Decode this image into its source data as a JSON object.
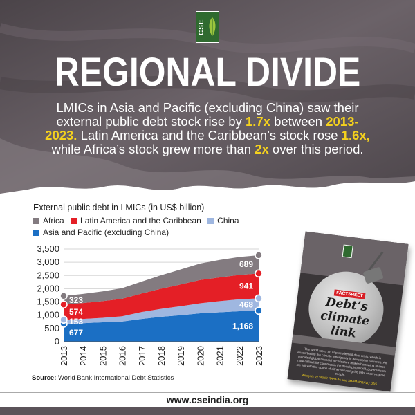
{
  "logo": {
    "text": "CSE"
  },
  "headline": {
    "title": "REGIONAL DIVIDE",
    "subtitle_parts": [
      {
        "text": "LMICs in Asia and Pacific (excluding China) saw their external public debt stock rise by ",
        "hl": false
      },
      {
        "text": "1.7x",
        "hl": true
      },
      {
        "text": " between ",
        "hl": false
      },
      {
        "text": "2013-2023.",
        "hl": true
      },
      {
        "text": " Latin America and the Caribbean’s stock rose ",
        "hl": false
      },
      {
        "text": "1.6x,",
        "hl": true
      },
      {
        "text": " while Africa’s stock grew more than ",
        "hl": false
      },
      {
        "text": "2x",
        "hl": true
      },
      {
        "text": " over this period.",
        "hl": false
      }
    ]
  },
  "colors": {
    "africa": "#837b80",
    "latin_america": "#e41f26",
    "china": "#9fb7e0",
    "asia_pacific": "#1b6fc4",
    "highlight": "#f4d11e",
    "header_bg": "#5b5359"
  },
  "chart_data": {
    "type": "area",
    "title": "External public debt in LMICs (in US$ billion)",
    "x": [
      "2013",
      "2014",
      "2015",
      "2016",
      "2017",
      "2018",
      "2019",
      "2020",
      "2021",
      "2022",
      "2023"
    ],
    "stacked": true,
    "ylim": [
      0,
      3500
    ],
    "yticks": [
      "0",
      "500",
      "1,000",
      "1,500",
      "2,000",
      "2,500",
      "3,000",
      "3,500"
    ],
    "grid": true,
    "legend_placement": "top-left",
    "series": [
      {
        "name": "Asia and Pacific (excluding China)",
        "color_key": "asia_pacific",
        "values": [
          677,
          700,
          730,
          760,
          860,
          940,
          1000,
          1070,
          1110,
          1150,
          1168
        ]
      },
      {
        "name": "China",
        "color_key": "china",
        "values": [
          153,
          160,
          170,
          200,
          260,
          300,
          340,
          380,
          420,
          450,
          468
        ]
      },
      {
        "name": "Latin America and the Caribbean",
        "color_key": "latin_america",
        "values": [
          574,
          600,
          630,
          660,
          700,
          760,
          820,
          880,
          900,
          920,
          941
        ]
      },
      {
        "name": "Africa",
        "color_key": "africa",
        "values": [
          323,
          345,
          370,
          400,
          450,
          510,
          570,
          620,
          660,
          680,
          689
        ]
      }
    ],
    "data_labels": {
      "start": [
        "677",
        "153",
        "574",
        "323"
      ],
      "end": [
        "1,168",
        "468",
        "941",
        "689"
      ]
    },
    "source_label": "Source:",
    "source_text": "World Bank International Debt Statistics"
  },
  "booklet": {
    "tag": "FACTSHEET",
    "title_line1": "Debt’s",
    "title_line2": "climate",
    "title_line3": "link",
    "blurb": "The world faces an unprecedented debt crisis, which is exacerbating the climate emergency in developing countries. An outdated global financial architecture makes borrowing finance more difficult for countries in the developing world, governments are left with the option of either servicing the debt or serving the people.",
    "authors": "Analysis by SEHR RAHEJA and SHAMAPRAVU DAS"
  },
  "footer": {
    "url": "www.cseindia.org"
  }
}
